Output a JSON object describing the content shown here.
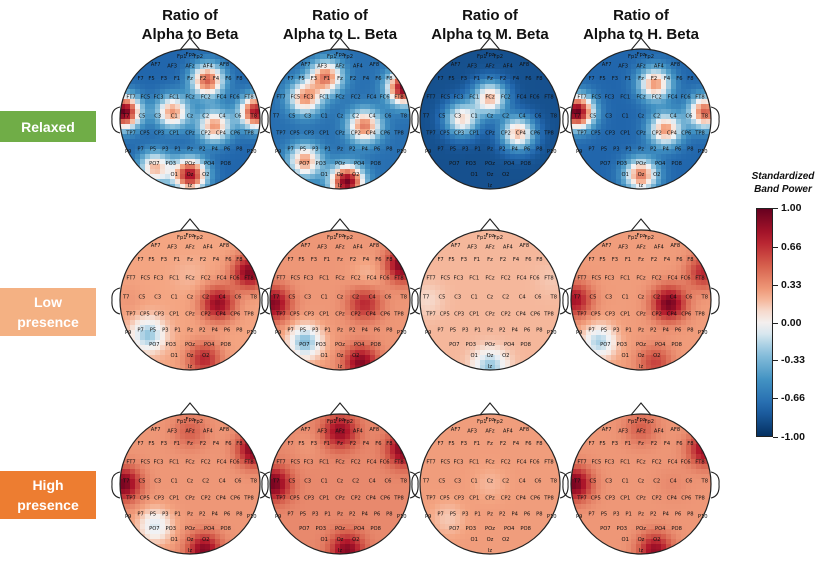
{
  "chart_data": {
    "type": "heatmap",
    "subtype": "eeg-topographic-map-grid",
    "columns": [
      {
        "line1": "Ratio of",
        "line2": "Alpha to Beta"
      },
      {
        "line1": "Ratio of",
        "line2": "Alpha to L. Beta"
      },
      {
        "line1": "Ratio of",
        "line2": "Alpha to M. Beta"
      },
      {
        "line1": "Ratio of",
        "line2": "Alpha to H. Beta"
      }
    ],
    "rows": [
      {
        "lines": [
          "Relaxed"
        ],
        "color": "#70ad47"
      },
      {
        "lines": [
          "Low",
          "presence"
        ],
        "color": "#f4b183"
      },
      {
        "lines": [
          "High",
          "presence"
        ],
        "color": "#ed7d31"
      }
    ],
    "colorbar": {
      "title_line1": "Standardized",
      "title_line2": "Band Power",
      "ticks": [
        "1.00",
        "0.66",
        "0.33",
        "0.00",
        "-0.33",
        "-0.66",
        "-1.00"
      ],
      "tick_values": [
        1.0,
        0.66,
        0.33,
        0.0,
        -0.33,
        -0.66,
        -1.0
      ],
      "range": [
        -1.0,
        1.0
      ],
      "colormap": "RdBu_r",
      "color_high": "#67001f",
      "color_mid": "#f7f7f7",
      "color_low": "#053061"
    },
    "electrodes": [
      "Fp1",
      "Fpz",
      "Fp2",
      "AF7",
      "AF3",
      "AFz",
      "AF4",
      "AF8",
      "F7",
      "F5",
      "F3",
      "F1",
      "Fz",
      "F2",
      "F4",
      "F6",
      "F8",
      "FT7",
      "FC5",
      "FC3",
      "FC1",
      "FCz",
      "FC2",
      "FC4",
      "FC6",
      "FT8",
      "T7",
      "C5",
      "C3",
      "C1",
      "Cz",
      "C2",
      "C4",
      "C6",
      "T8",
      "TP7",
      "CP5",
      "CP3",
      "CP1",
      "CPz",
      "CP2",
      "CP4",
      "CP6",
      "TP8",
      "P9",
      "P7",
      "P5",
      "P3",
      "P1",
      "Pz",
      "P2",
      "P4",
      "P6",
      "P8",
      "P10",
      "PO7",
      "PO3",
      "POz",
      "PO4",
      "PO8",
      "O1",
      "Oz",
      "O2",
      "Iz"
    ],
    "maps": [
      {
        "row": 0,
        "col": 0,
        "baseline": -0.75,
        "sources": [
          [
            -0.95,
            0.1,
            1.0
          ],
          [
            0.95,
            0.1,
            0.8
          ],
          [
            0.0,
            -0.8,
            0.8
          ],
          [
            0.25,
            0.55,
            0.5
          ],
          [
            -0.25,
            0.1,
            0.3
          ],
          [
            0.35,
            -0.1,
            0.3
          ],
          [
            -0.5,
            -0.7,
            0.2
          ]
        ]
      },
      {
        "row": 0,
        "col": 1,
        "baseline": -0.7,
        "sources": [
          [
            0.92,
            0.45,
            0.95
          ],
          [
            0.1,
            -0.9,
            0.95
          ],
          [
            -0.2,
            0.6,
            0.4
          ],
          [
            0.35,
            -0.1,
            0.4
          ],
          [
            -0.5,
            0.3,
            0.3
          ],
          [
            -0.5,
            -0.6,
            0.3
          ]
        ]
      },
      {
        "row": 0,
        "col": 2,
        "baseline": -0.85,
        "sources": [
          [
            0.0,
            0.3,
            0.2
          ],
          [
            0.4,
            -0.2,
            0.2
          ],
          [
            -0.4,
            0.0,
            0.1
          ]
        ]
      },
      {
        "row": 0,
        "col": 3,
        "baseline": -0.75,
        "sources": [
          [
            -0.92,
            0.1,
            1.0
          ],
          [
            0.92,
            0.1,
            0.5
          ],
          [
            0.2,
            0.5,
            0.3
          ],
          [
            0.0,
            -0.8,
            0.4
          ],
          [
            0.35,
            -0.15,
            0.3
          ]
        ]
      },
      {
        "row": 1,
        "col": 0,
        "baseline": 0.25,
        "sources": [
          [
            0.85,
            0.4,
            0.9
          ],
          [
            0.4,
            -0.05,
            0.85
          ],
          [
            0.2,
            -0.85,
            0.7
          ],
          [
            -0.9,
            0.0,
            0.3
          ],
          [
            -0.6,
            -0.5,
            -0.25
          ],
          [
            0.0,
            0.35,
            0.2
          ]
        ]
      },
      {
        "row": 1,
        "col": 1,
        "baseline": 0.3,
        "sources": [
          [
            0.9,
            0.5,
            0.95
          ],
          [
            -0.95,
            -0.05,
            0.9
          ],
          [
            0.3,
            -0.9,
            0.9
          ],
          [
            0.35,
            -0.05,
            0.7
          ],
          [
            -0.5,
            -0.6,
            -0.3
          ],
          [
            0.4,
            0.35,
            0.2
          ]
        ]
      },
      {
        "row": 1,
        "col": 2,
        "baseline": 0.2,
        "sources": [
          [
            0.0,
            -0.95,
            -0.25
          ],
          [
            0.9,
            0.3,
            0.15
          ],
          [
            -0.9,
            0.0,
            0.1
          ]
        ]
      },
      {
        "row": 1,
        "col": 3,
        "baseline": 0.28,
        "sources": [
          [
            0.9,
            0.4,
            0.7
          ],
          [
            -0.95,
            0.0,
            0.8
          ],
          [
            0.4,
            -0.05,
            0.95
          ],
          [
            0.2,
            -0.9,
            0.6
          ],
          [
            -0.6,
            -0.6,
            -0.2
          ]
        ]
      },
      {
        "row": 2,
        "col": 0,
        "baseline": 0.3,
        "sources": [
          [
            0.92,
            0.5,
            0.95
          ],
          [
            -0.95,
            0.0,
            0.95
          ],
          [
            0.2,
            -0.95,
            0.9
          ],
          [
            0.0,
            0.75,
            0.5
          ],
          [
            0.5,
            0.0,
            0.3
          ],
          [
            -0.5,
            -0.6,
            -0.1
          ]
        ]
      },
      {
        "row": 2,
        "col": 1,
        "baseline": 0.35,
        "sources": [
          [
            0.92,
            0.5,
            0.95
          ],
          [
            -0.95,
            0.0,
            0.95
          ],
          [
            0.1,
            -0.95,
            0.9
          ],
          [
            0.0,
            0.75,
            0.85
          ],
          [
            -0.45,
            0.55,
            0.3
          ]
        ]
      },
      {
        "row": 2,
        "col": 2,
        "baseline": 0.28,
        "sources": [
          [
            0.0,
            0.0,
            0.2
          ],
          [
            -0.6,
            -0.5,
            0.15
          ]
        ]
      },
      {
        "row": 2,
        "col": 3,
        "baseline": 0.3,
        "sources": [
          [
            0.92,
            0.5,
            0.85
          ],
          [
            -0.95,
            0.0,
            0.95
          ],
          [
            0.2,
            -0.95,
            0.85
          ],
          [
            0.0,
            0.8,
            0.5
          ],
          [
            0.45,
            0.0,
            0.35
          ]
        ]
      }
    ]
  }
}
